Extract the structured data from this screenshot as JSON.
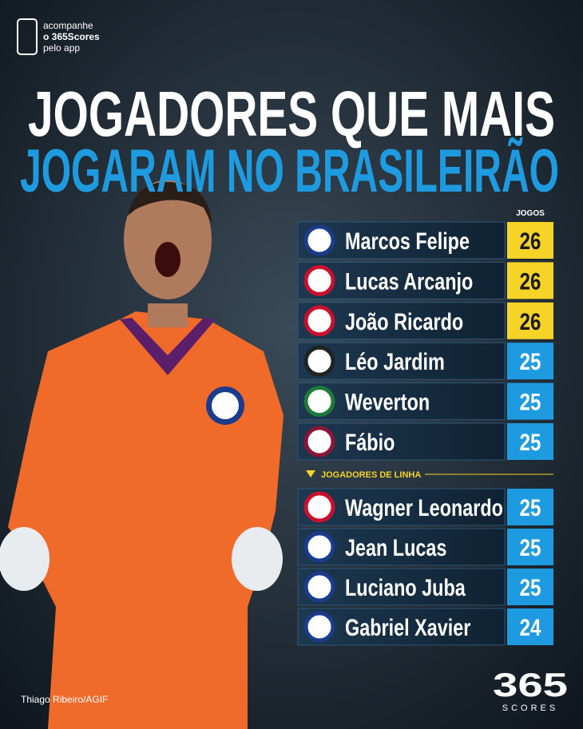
{
  "app_badge": [
    "acompanhe",
    "o 365Scores",
    "pelo app"
  ],
  "title": [
    "JOGADORES QUE MAIS",
    "JOGARAM NO BRASILEIRÃO"
  ],
  "table": {
    "header": "JOGOS",
    "goalkeepers": [
      {
        "name": "Marcos Felipe",
        "games": 26
      },
      {
        "name": "Lucas Arcanjo",
        "games": 26
      },
      {
        "name": "João Ricardo",
        "games": 26
      },
      {
        "name": "Léo Jardim",
        "games": 25
      },
      {
        "name": "Weverton",
        "games": 25
      },
      {
        "name": "Fábio",
        "games": 25
      }
    ],
    "section_label": "JOGADORES DE LINHA",
    "outfield": [
      {
        "name": "Wagner Leonardo",
        "games": 25
      },
      {
        "name": "Jean Lucas",
        "games": 25
      },
      {
        "name": "Luciano Juba",
        "games": 25
      },
      {
        "name": "Gabriel Xavier",
        "games": 24
      }
    ]
  },
  "photo_credit": "Thiago Ribeiro/AGIF",
  "logo": [
    "365",
    "SCORES"
  ]
}
